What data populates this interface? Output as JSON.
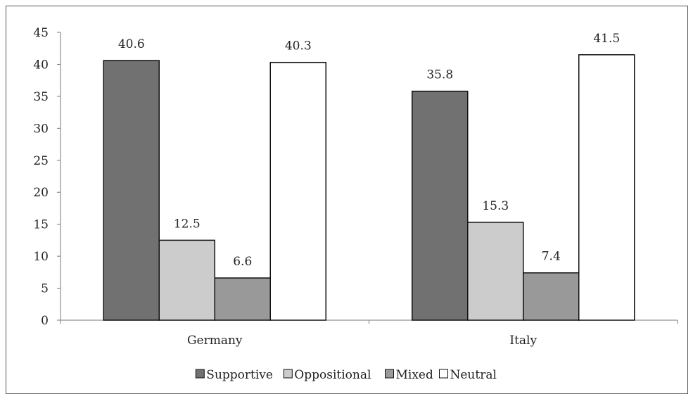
{
  "chart_data": {
    "type": "bar",
    "title": "",
    "xlabel": "",
    "ylabel": "",
    "categories": [
      "Germany",
      "Italy"
    ],
    "series": [
      {
        "name": "Supportive",
        "values": [
          40.6,
          35.8
        ],
        "color": "#717171"
      },
      {
        "name": "Oppositional",
        "values": [
          12.5,
          15.3
        ],
        "color": "#cccccc"
      },
      {
        "name": "Mixed",
        "values": [
          6.6,
          7.4
        ],
        "color": "#999999"
      },
      {
        "name": "Neutral",
        "values": [
          40.3,
          41.5
        ],
        "color": "#ffffff"
      }
    ],
    "ylim": [
      0,
      45
    ],
    "yticks": [
      0,
      5,
      10,
      15,
      20,
      25,
      30,
      35,
      40,
      45
    ],
    "grid": false,
    "legend_position": "bottom"
  }
}
